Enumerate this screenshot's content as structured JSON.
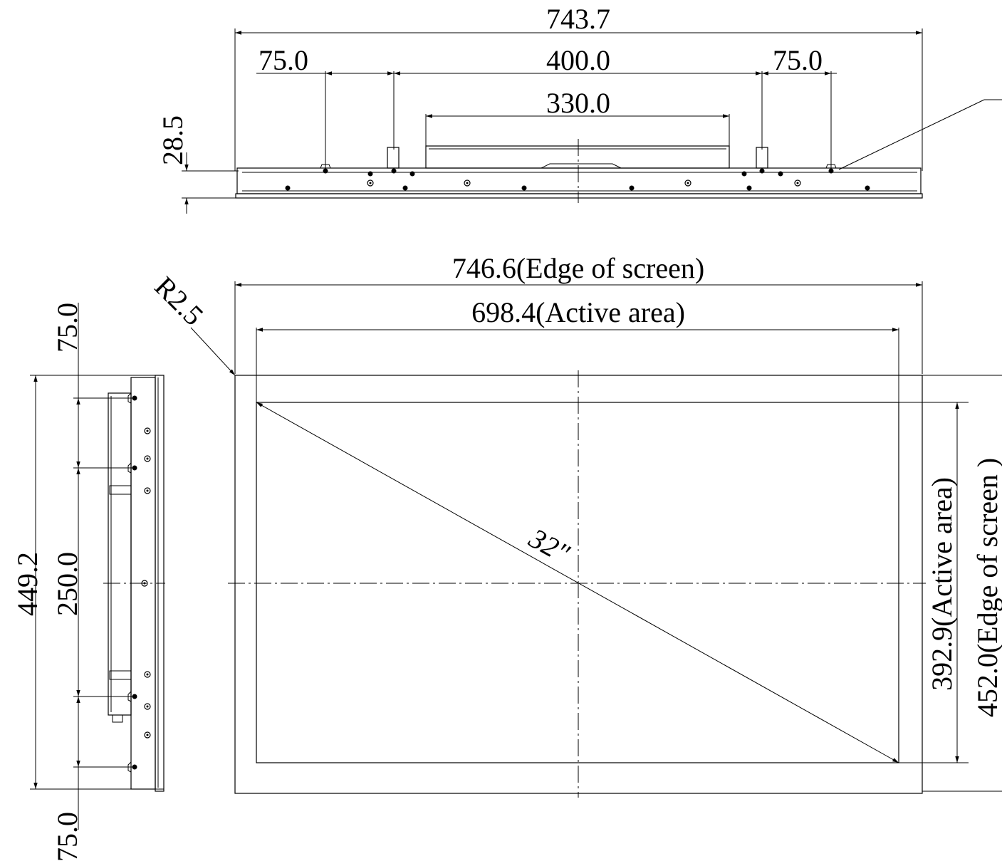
{
  "drawing": {
    "top_view": {
      "overall_width": "743.7",
      "left_offset": "75.0",
      "hole_spacing": "400.0",
      "right_offset": "75.0",
      "inner_width": "330.0",
      "depth": "28.5"
    },
    "front_view": {
      "screen_edge_width": "746.6(Edge of screen)",
      "active_width": "698.4(Active area)",
      "corner_radius": "R2.5",
      "diagonal": "32\"",
      "active_height": "392.9(Active area)",
      "screen_edge_height": "452.0(Edge of screen )"
    },
    "side_view": {
      "overall_height": "449.2",
      "top_offset": "75.0",
      "hole_spacing": "250.0",
      "bottom_offset": "75.0"
    }
  }
}
